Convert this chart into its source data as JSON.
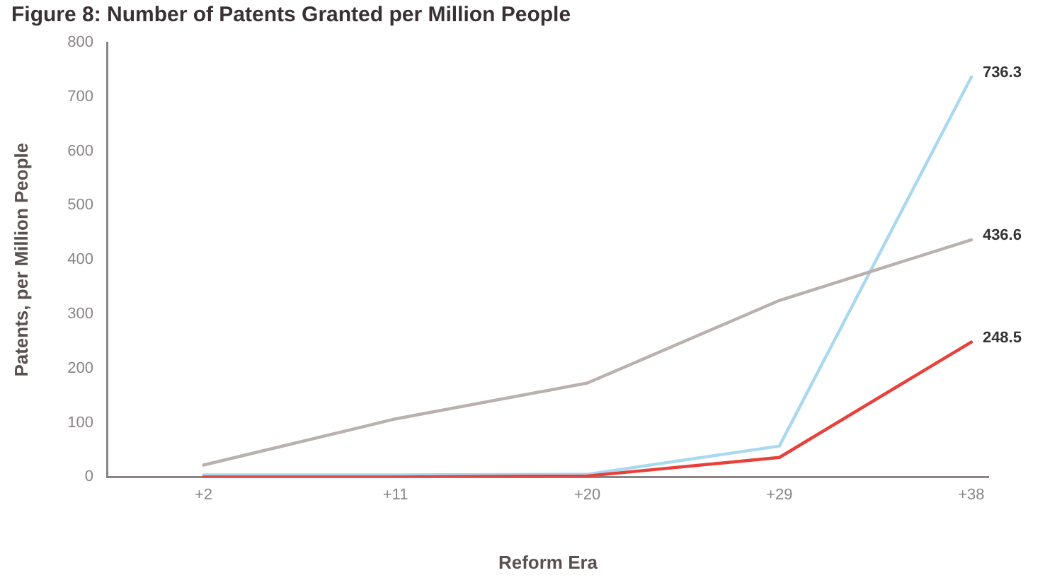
{
  "chart_data": {
    "type": "line",
    "title": "Figure 8: Number of Patents Granted per Million People",
    "xlabel": "Reform Era",
    "ylabel": "Patents, per Million People",
    "x": [
      2,
      11,
      20,
      29,
      38
    ],
    "xlim": [
      -2.5,
      38.8
    ],
    "xticks": [
      {
        "value": 2,
        "label": "+2"
      },
      {
        "value": 11,
        "label": "+11"
      },
      {
        "value": 20,
        "label": "+20"
      },
      {
        "value": 29,
        "label": "+29"
      },
      {
        "value": 38,
        "label": "+38"
      }
    ],
    "ylim": [
      0,
      800
    ],
    "yticks": [
      0,
      100,
      200,
      300,
      400,
      500,
      600,
      700,
      800
    ],
    "marker": "none",
    "line_style": "solid",
    "series": [
      {
        "color": "#a9d8ef",
        "values": [
          4,
          4,
          5,
          57,
          736.3
        ],
        "value_labels": [
          null,
          null,
          null,
          null,
          "736.3"
        ]
      },
      {
        "color": "#bab1af",
        "values": [
          22,
          107,
          173,
          325,
          436.6
        ],
        "value_labels": [
          null,
          null,
          null,
          null,
          "436.6"
        ]
      },
      {
        "color": "#e8403a",
        "values": [
          0,
          0,
          2,
          36,
          248.5
        ],
        "value_labels": [
          null,
          null,
          null,
          null,
          "248.5"
        ]
      }
    ]
  }
}
